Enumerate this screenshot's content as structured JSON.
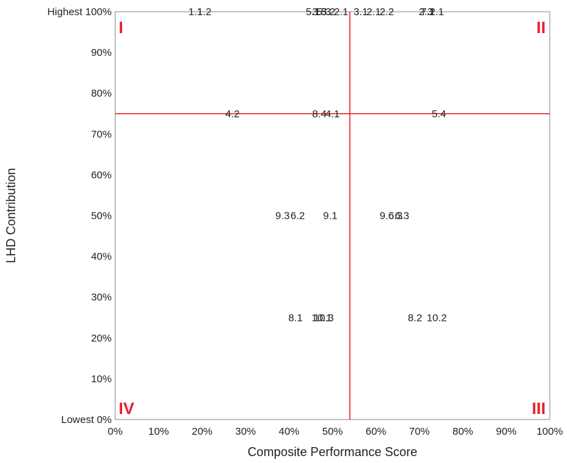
{
  "chart_data": {
    "type": "scatter",
    "xlabel": "Composite Performance Score",
    "ylabel": "LHD Contribution",
    "xlim": [
      0,
      100
    ],
    "ylim": [
      0,
      100
    ],
    "x_ticks": [
      "0%",
      "10%",
      "20%",
      "30%",
      "40%",
      "50%",
      "60%",
      "70%",
      "80%",
      "90%",
      "100%"
    ],
    "y_ticks": [
      "Lowest 0%",
      "10%",
      "20%",
      "30%",
      "40%",
      "50%",
      "60%",
      "70%",
      "80%",
      "90%",
      "Highest 100%"
    ],
    "grid": false,
    "reference_lines": {
      "x": 54,
      "y": 75,
      "color": "#e8202a"
    },
    "quadrant_labels": [
      {
        "label": "I",
        "corner": "top-left"
      },
      {
        "label": "II",
        "corner": "top-right"
      },
      {
        "label": "III",
        "corner": "bottom-right"
      },
      {
        "label": "IV",
        "corner": "bottom-left"
      }
    ],
    "points": [
      {
        "label": "1.1",
        "x": 18.5,
        "y": 100
      },
      {
        "label": "1.2",
        "x": 20.5,
        "y": 100
      },
      {
        "label": "5.1",
        "x": 45.5,
        "y": 100
      },
      {
        "label": "3.3",
        "x": 47,
        "y": 100
      },
      {
        "label": "5.3",
        "x": 48,
        "y": 100
      },
      {
        "label": "5.2",
        "x": 49,
        "y": 100
      },
      {
        "label": "2.1",
        "x": 52,
        "y": 100
      },
      {
        "label": "3.1",
        "x": 56.5,
        "y": 100
      },
      {
        "label": "2.1",
        "x": 59.5,
        "y": 100
      },
      {
        "label": "2.2",
        "x": 62.5,
        "y": 100
      },
      {
        "label": "2.3",
        "x": 71.5,
        "y": 100
      },
      {
        "label": "7.1",
        "x": 72,
        "y": 100
      },
      {
        "label": "2.1",
        "x": 74,
        "y": 100
      },
      {
        "label": "4.2",
        "x": 27,
        "y": 75
      },
      {
        "label": "8.4",
        "x": 47,
        "y": 75
      },
      {
        "label": "4.1",
        "x": 50,
        "y": 75
      },
      {
        "label": "5.4",
        "x": 74.5,
        "y": 75
      },
      {
        "label": "9.3",
        "x": 38.5,
        "y": 50
      },
      {
        "label": "6.2",
        "x": 42,
        "y": 50
      },
      {
        "label": "9.1",
        "x": 49.5,
        "y": 50
      },
      {
        "label": "9.6",
        "x": 62.5,
        "y": 50
      },
      {
        "label": "6.3",
        "x": 64.5,
        "y": 50
      },
      {
        "label": "6.3",
        "x": 66,
        "y": 50
      },
      {
        "label": "8.1",
        "x": 41.5,
        "y": 25
      },
      {
        "label": "10.1",
        "x": 47.5,
        "y": 25
      },
      {
        "label": "10.3",
        "x": 48,
        "y": 25
      },
      {
        "label": "8.2",
        "x": 69,
        "y": 25
      },
      {
        "label": "10.2",
        "x": 74,
        "y": 25
      }
    ]
  }
}
